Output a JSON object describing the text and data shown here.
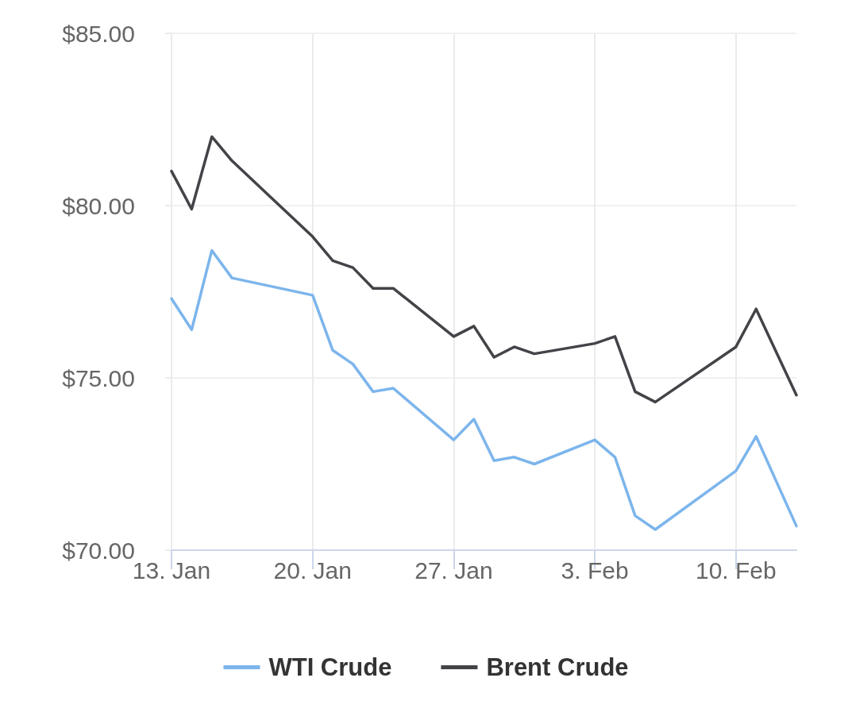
{
  "chart_data": {
    "type": "line",
    "x": [
      "--01-13",
      "--01-14",
      "--01-15",
      "--01-16",
      "--01-20",
      "--01-21",
      "--01-22",
      "--01-23",
      "--01-24",
      "--01-27",
      "--01-28",
      "--01-29",
      "--01-30",
      "--01-31",
      "--02-03",
      "--02-04",
      "--02-05",
      "--02-06",
      "--02-10",
      "--02-11",
      "--02-13"
    ],
    "series": [
      {
        "name": "WTI Crude",
        "color": "#7cb5ec",
        "values": [
          77.3,
          76.4,
          78.7,
          77.9,
          77.4,
          75.8,
          75.4,
          74.6,
          74.7,
          73.2,
          73.8,
          72.6,
          72.7,
          72.5,
          73.2,
          72.7,
          71.0,
          70.6,
          72.3,
          73.3,
          70.7
        ]
      },
      {
        "name": "Brent Crude",
        "color": "#434348",
        "values": [
          81.0,
          79.9,
          82.0,
          81.3,
          79.1,
          78.4,
          78.2,
          77.6,
          77.6,
          76.2,
          76.5,
          75.6,
          75.9,
          75.7,
          76.0,
          76.2,
          74.6,
          74.3,
          75.9,
          77.0,
          74.5
        ]
      }
    ],
    "xlim": [
      "--01-13",
      "--02-13"
    ],
    "xticks": [
      {
        "value": "--01-13",
        "label": "13. Jan"
      },
      {
        "value": "--01-20",
        "label": "20. Jan"
      },
      {
        "value": "--01-27",
        "label": "27. Jan"
      },
      {
        "value": "--02-03",
        "label": "3. Feb"
      },
      {
        "value": "--02-10",
        "label": "10. Feb"
      }
    ],
    "ylim": [
      70,
      85
    ],
    "yticks": [
      {
        "value": 70,
        "label": "$70.00"
      },
      {
        "value": 75,
        "label": "$75.00"
      },
      {
        "value": 80,
        "label": "$80.00"
      },
      {
        "value": 85,
        "label": "$85.00"
      }
    ],
    "grid": true,
    "legend": "bottom",
    "marker": "none",
    "line_style": "solid"
  }
}
